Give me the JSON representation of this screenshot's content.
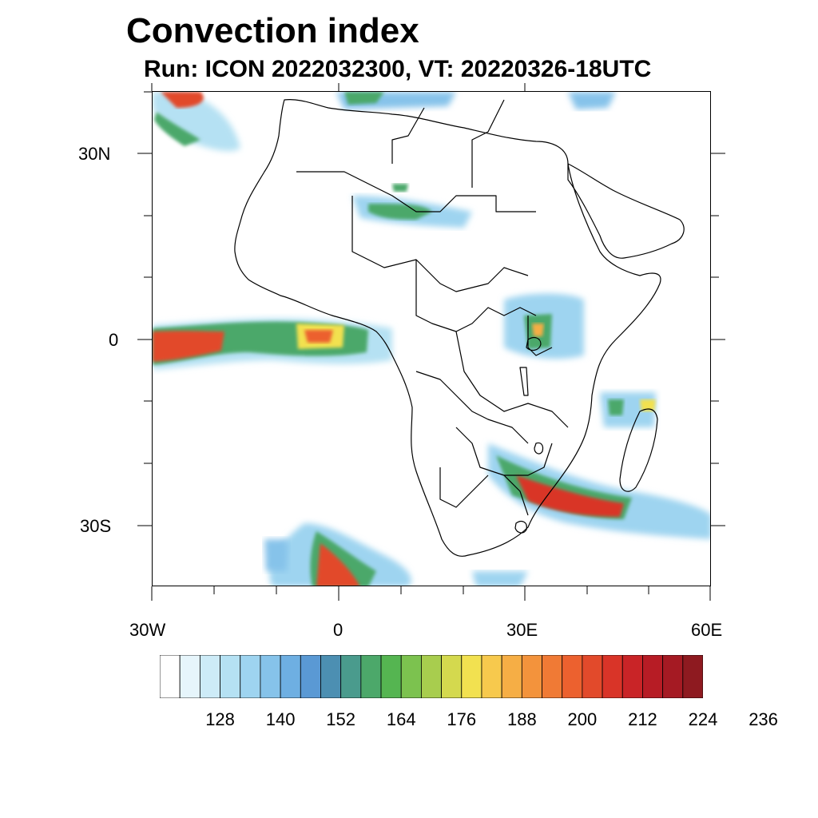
{
  "title": "Convection index",
  "subtitle": "Run: ICON 2022032300,  VT: 20220326-18UTC",
  "map": {
    "projection": "lon-lat",
    "lon_range": [
      -30,
      60
    ],
    "lat_range": [
      -40,
      40
    ],
    "y_tick_labels": [
      "30N",
      "0",
      "30S"
    ],
    "x_tick_labels": [
      "30W",
      "0",
      "30E",
      "60E"
    ]
  },
  "colorbar": {
    "colors": [
      "#ffffff",
      "#e6f5fb",
      "#cdebf7",
      "#b5e1f3",
      "#9ed4f0",
      "#86c3ea",
      "#6eafe2",
      "#5a99d4",
      "#4c8fb2",
      "#4a9b8d",
      "#4ca86a",
      "#55b551",
      "#7cc24f",
      "#a8cd4e",
      "#d4d94e",
      "#f2e150",
      "#f7c94d",
      "#f6ae45",
      "#f3933c",
      "#f07a35",
      "#ec612f",
      "#e24a2b",
      "#d93428",
      "#c92427",
      "#b71c25",
      "#a51a23",
      "#8e1a20"
    ],
    "labels": [
      "128",
      "140",
      "152",
      "164",
      "176",
      "188",
      "200",
      "212",
      "224",
      "236"
    ]
  }
}
